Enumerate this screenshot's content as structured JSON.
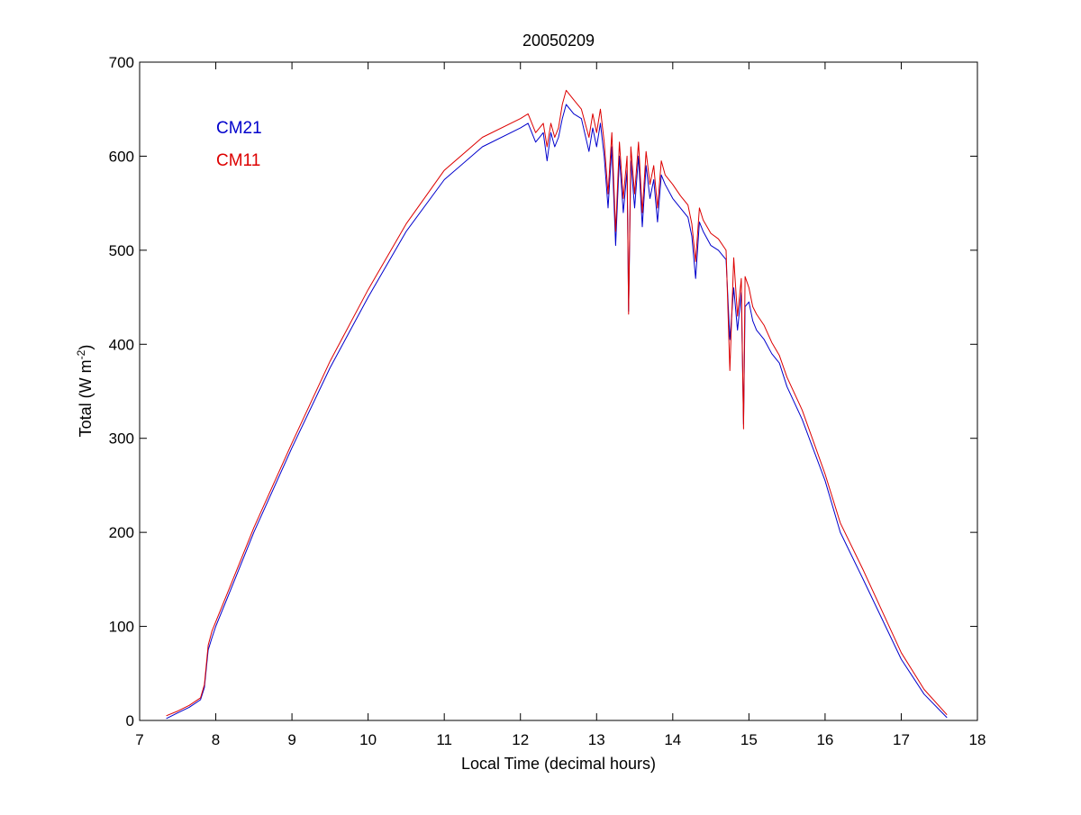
{
  "chart_data": {
    "type": "line",
    "title": "20050209",
    "xlabel": "Local Time (decimal hours)",
    "ylabel": "Total (W m",
    "ylabel_superscript": "-2",
    "ylabel_suffix": ")",
    "xlim": [
      7,
      18
    ],
    "ylim": [
      0,
      700
    ],
    "x_ticks": [
      7,
      8,
      9,
      10,
      11,
      12,
      13,
      14,
      15,
      16,
      17,
      18
    ],
    "y_ticks": [
      0,
      100,
      200,
      300,
      400,
      500,
      600,
      700
    ],
    "legend_position": "top-left",
    "series": [
      {
        "name": "CM21",
        "color": "#0000cc",
        "x": [
          7.35,
          7.5,
          7.65,
          7.8,
          7.85,
          7.9,
          7.95,
          8.0,
          8.2,
          8.5,
          9.0,
          9.5,
          10.0,
          10.5,
          11.0,
          11.5,
          12.0,
          12.1,
          12.2,
          12.3,
          12.35,
          12.4,
          12.45,
          12.5,
          12.55,
          12.6,
          12.7,
          12.8,
          12.9,
          12.95,
          13.0,
          13.05,
          13.1,
          13.15,
          13.2,
          13.25,
          13.3,
          13.35,
          13.4,
          13.42,
          13.45,
          13.5,
          13.55,
          13.6,
          13.65,
          13.7,
          13.75,
          13.8,
          13.85,
          13.9,
          14.0,
          14.1,
          14.2,
          14.25,
          14.3,
          14.35,
          14.4,
          14.5,
          14.6,
          14.7,
          14.75,
          14.8,
          14.85,
          14.9,
          14.93,
          14.95,
          15.0,
          15.05,
          15.1,
          15.2,
          15.3,
          15.4,
          15.5,
          15.7,
          16.0,
          16.2,
          16.5,
          17.0,
          17.3,
          17.6
        ],
        "values": [
          2,
          8,
          14,
          22,
          35,
          75,
          88,
          100,
          140,
          200,
          290,
          375,
          450,
          520,
          575,
          610,
          630,
          635,
          615,
          625,
          595,
          625,
          610,
          620,
          640,
          655,
          645,
          640,
          605,
          630,
          610,
          635,
          600,
          545,
          610,
          505,
          600,
          540,
          585,
          435,
          595,
          545,
          600,
          525,
          590,
          555,
          575,
          530,
          580,
          570,
          555,
          545,
          535,
          515,
          470,
          530,
          520,
          505,
          500,
          490,
          405,
          460,
          415,
          455,
          315,
          440,
          445,
          425,
          415,
          405,
          390,
          380,
          355,
          320,
          255,
          200,
          150,
          65,
          28,
          3
        ]
      },
      {
        "name": "CM11",
        "color": "#dd0000",
        "x": [
          7.35,
          7.5,
          7.65,
          7.8,
          7.85,
          7.9,
          7.95,
          8.0,
          8.2,
          8.5,
          9.0,
          9.5,
          10.0,
          10.5,
          11.0,
          11.5,
          12.0,
          12.1,
          12.2,
          12.3,
          12.35,
          12.4,
          12.45,
          12.5,
          12.55,
          12.6,
          12.7,
          12.8,
          12.9,
          12.95,
          13.0,
          13.05,
          13.1,
          13.15,
          13.2,
          13.25,
          13.3,
          13.35,
          13.4,
          13.42,
          13.45,
          13.5,
          13.55,
          13.6,
          13.65,
          13.7,
          13.75,
          13.8,
          13.85,
          13.9,
          14.0,
          14.1,
          14.2,
          14.25,
          14.3,
          14.35,
          14.4,
          14.5,
          14.6,
          14.7,
          14.75,
          14.8,
          14.85,
          14.9,
          14.93,
          14.95,
          15.0,
          15.05,
          15.1,
          15.2,
          15.3,
          15.4,
          15.5,
          15.7,
          16.0,
          16.2,
          16.5,
          17.0,
          17.3,
          17.6
        ],
        "values": [
          5,
          10,
          16,
          24,
          38,
          80,
          95,
          105,
          145,
          205,
          295,
          382,
          458,
          528,
          585,
          620,
          640,
          645,
          625,
          635,
          610,
          635,
          620,
          630,
          655,
          670,
          660,
          650,
          620,
          645,
          625,
          650,
          615,
          560,
          625,
          520,
          615,
          555,
          600,
          432,
          610,
          560,
          615,
          540,
          605,
          570,
          590,
          545,
          595,
          580,
          570,
          558,
          548,
          528,
          488,
          545,
          532,
          518,
          512,
          500,
          372,
          492,
          430,
          470,
          310,
          472,
          460,
          440,
          432,
          420,
          402,
          388,
          365,
          330,
          262,
          210,
          160,
          72,
          33,
          6
        ]
      }
    ]
  }
}
